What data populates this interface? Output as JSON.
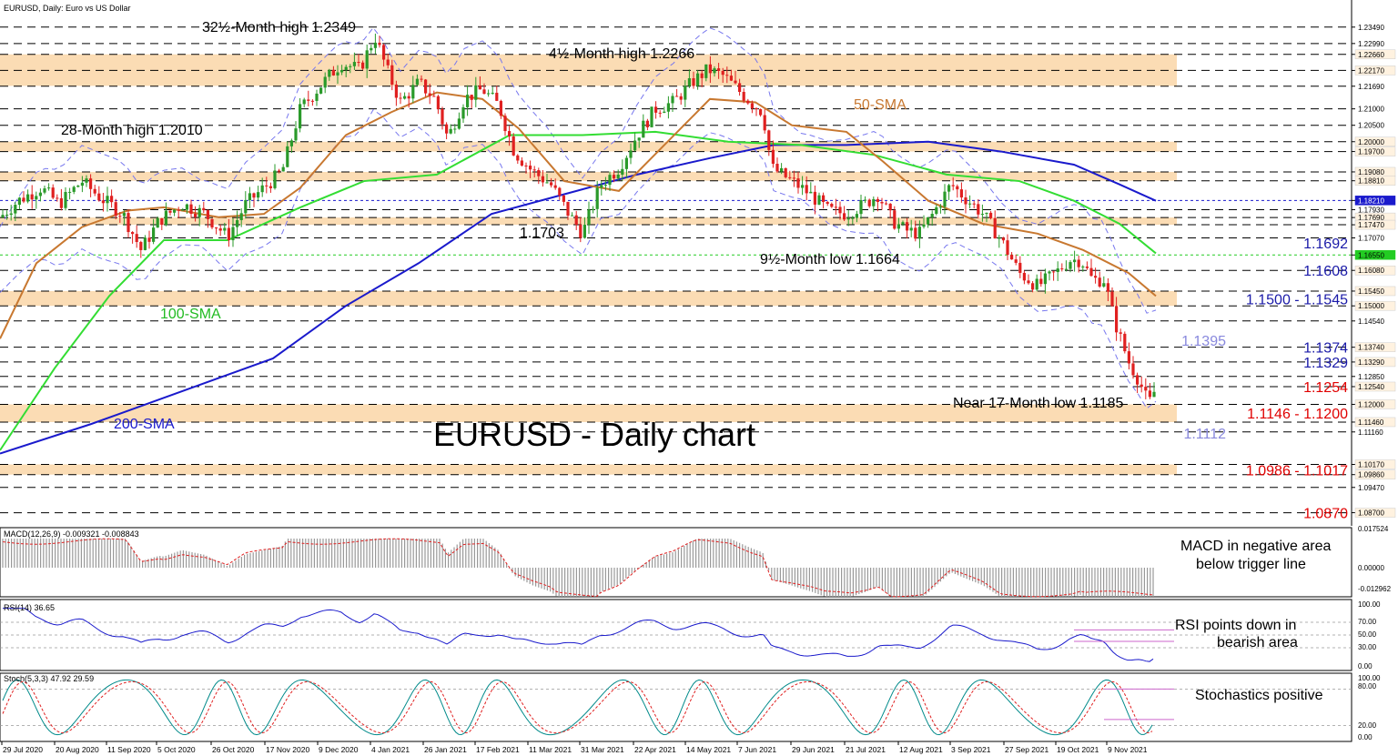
{
  "chart_data": {
    "type": "candlestick",
    "title": "EURUSD - Daily chart",
    "header": "EURUSD, Daily:  Euro vs US Dollar",
    "ylim": [
      1.083,
      1.239
    ],
    "price_ticks": [
      "1.23490",
      "1.22990",
      "1.22660",
      "1.22170",
      "1.21690",
      "1.21000",
      "1.20500",
      "1.20000",
      "1.19700",
      "1.19080",
      "1.18810",
      "1.18210",
      "1.17930",
      "1.17690",
      "1.17470",
      "1.17070",
      "1.16550",
      "1.16080",
      "1.15450",
      "1.15000",
      "1.14540",
      "1.13740",
      "1.13290",
      "1.12850",
      "1.12540",
      "1.12000",
      "1.11460",
      "1.11160",
      "1.10170",
      "1.09860",
      "1.09470",
      "1.08700"
    ],
    "x_labels": [
      "29 Jul 2020",
      "20 Aug 2020",
      "11 Sep 2020",
      "5 Oct 2020",
      "26 Oct 2020",
      "17 Nov 2020",
      "9 Dec 2020",
      "4 Jan 2021",
      "26 Jan 2021",
      "17 Feb 2021",
      "11 Mar 2021",
      "31 Mar 2021",
      "22 Apr 2021",
      "14 May 2021",
      "7 Jun 2021",
      "29 Jun 2021",
      "21 Jul 2021",
      "12 Aug 2021",
      "3 Sep 2021",
      "27 Sep 2021",
      "19 Oct 2021",
      "9 Nov 2021"
    ],
    "price_path": [
      [
        0,
        1.177
      ],
      [
        20,
        1.182
      ],
      [
        45,
        1.186
      ],
      [
        65,
        1.181
      ],
      [
        90,
        1.188
      ],
      [
        110,
        1.183
      ],
      [
        135,
        1.178
      ],
      [
        155,
        1.167
      ],
      [
        175,
        1.176
      ],
      [
        200,
        1.181
      ],
      [
        225,
        1.178
      ],
      [
        250,
        1.171
      ],
      [
        270,
        1.181
      ],
      [
        290,
        1.186
      ],
      [
        310,
        1.191
      ],
      [
        330,
        1.21
      ],
      [
        355,
        1.218
      ],
      [
        375,
        1.224
      ],
      [
        395,
        1.222
      ],
      [
        412,
        1.232
      ],
      [
        425,
        1.222
      ],
      [
        440,
        1.212
      ],
      [
        460,
        1.218
      ],
      [
        478,
        1.213
      ],
      [
        492,
        1.201
      ],
      [
        510,
        1.213
      ],
      [
        530,
        1.216
      ],
      [
        548,
        1.211
      ],
      [
        565,
        1.197
      ],
      [
        585,
        1.191
      ],
      [
        605,
        1.187
      ],
      [
        625,
        1.178
      ],
      [
        640,
        1.172
      ],
      [
        660,
        1.187
      ],
      [
        680,
        1.192
      ],
      [
        700,
        1.202
      ],
      [
        720,
        1.21
      ],
      [
        740,
        1.212
      ],
      [
        760,
        1.218
      ],
      [
        778,
        1.222
      ],
      [
        795,
        1.22
      ],
      [
        810,
        1.216
      ],
      [
        825,
        1.212
      ],
      [
        838,
        1.209
      ],
      [
        848,
        1.192
      ],
      [
        870,
        1.188
      ],
      [
        890,
        1.184
      ],
      [
        910,
        1.179
      ],
      [
        930,
        1.178
      ],
      [
        950,
        1.181
      ],
      [
        965,
        1.184
      ],
      [
        980,
        1.176
      ],
      [
        995,
        1.173
      ],
      [
        1010,
        1.172
      ],
      [
        1025,
        1.178
      ],
      [
        1045,
        1.187
      ],
      [
        1060,
        1.183
      ],
      [
        1080,
        1.178
      ],
      [
        1100,
        1.17
      ],
      [
        1120,
        1.16
      ],
      [
        1140,
        1.156
      ],
      [
        1160,
        1.16
      ],
      [
        1175,
        1.164
      ],
      [
        1188,
        1.164
      ],
      [
        1200,
        1.158
      ],
      [
        1213,
        1.158
      ],
      [
        1225,
        1.145
      ],
      [
        1240,
        1.133
      ],
      [
        1252,
        1.127
      ],
      [
        1262,
        1.12
      ],
      [
        1270,
        1.125
      ]
    ],
    "sma50_path": [
      [
        0,
        1.14
      ],
      [
        40,
        1.163
      ],
      [
        90,
        1.174
      ],
      [
        140,
        1.179
      ],
      [
        180,
        1.18
      ],
      [
        240,
        1.177
      ],
      [
        290,
        1.178
      ],
      [
        330,
        1.186
      ],
      [
        380,
        1.202
      ],
      [
        430,
        1.209
      ],
      [
        480,
        1.215
      ],
      [
        530,
        1.213
      ],
      [
        570,
        1.204
      ],
      [
        620,
        1.188
      ],
      [
        680,
        1.185
      ],
      [
        730,
        1.199
      ],
      [
        780,
        1.213
      ],
      [
        830,
        1.212
      ],
      [
        870,
        1.205
      ],
      [
        930,
        1.203
      ],
      [
        970,
        1.194
      ],
      [
        1020,
        1.182
      ],
      [
        1080,
        1.175
      ],
      [
        1140,
        1.172
      ],
      [
        1190,
        1.167
      ],
      [
        1240,
        1.16
      ],
      [
        1270,
        1.153
      ]
    ],
    "sma100_path": [
      [
        0,
        1.106
      ],
      [
        60,
        1.131
      ],
      [
        120,
        1.153
      ],
      [
        180,
        1.17
      ],
      [
        250,
        1.17
      ],
      [
        330,
        1.18
      ],
      [
        400,
        1.188
      ],
      [
        480,
        1.19
      ],
      [
        560,
        1.202
      ],
      [
        640,
        1.202
      ],
      [
        720,
        1.203
      ],
      [
        800,
        1.2
      ],
      [
        880,
        1.199
      ],
      [
        960,
        1.196
      ],
      [
        1040,
        1.19
      ],
      [
        1120,
        1.188
      ],
      [
        1180,
        1.182
      ],
      [
        1230,
        1.175
      ],
      [
        1270,
        1.166
      ]
    ],
    "sma200_path": [
      [
        0,
        1.105
      ],
      [
        100,
        1.114
      ],
      [
        200,
        1.124
      ],
      [
        300,
        1.134
      ],
      [
        380,
        1.15
      ],
      [
        460,
        1.163
      ],
      [
        540,
        1.178
      ],
      [
        620,
        1.184
      ],
      [
        700,
        1.19
      ],
      [
        780,
        1.195
      ],
      [
        850,
        1.199
      ],
      [
        930,
        1.199
      ],
      [
        1020,
        1.2
      ],
      [
        1100,
        1.197
      ],
      [
        1180,
        1.193
      ],
      [
        1230,
        1.187
      ],
      [
        1270,
        1.182
      ]
    ],
    "zones": [
      {
        "low": 1.217,
        "high": 1.2266
      },
      {
        "low": 1.197,
        "high": 1.2
      },
      {
        "low": 1.1881,
        "high": 1.1908
      },
      {
        "low": 1.1747,
        "high": 1.1769
      },
      {
        "low": 1.15,
        "high": 1.1545
      },
      {
        "low": 1.1146,
        "high": 1.12
      },
      {
        "low": 1.0986,
        "high": 1.1017
      }
    ],
    "annotations": {
      "high_32m": "32½-Month high 1.2349",
      "high_4m": "4½-Month high 1.2266",
      "high_28m": "28-Month high 1.2010",
      "low_1703": "1.1703",
      "low_9m": "9½-Month low 1.1664",
      "low_17m": "Near 17-Month low 1.1185",
      "sma50": "50-SMA",
      "sma100": "100-SMA",
      "sma200": "200-SMA"
    },
    "levels": [
      {
        "text": "1.1692",
        "price": 1.1692,
        "color": "#1a1aa8"
      },
      {
        "text": "1.1608",
        "price": 1.1608,
        "color": "#1a1aa8"
      },
      {
        "text": "1.1500 - 1.1545",
        "price": 1.1522,
        "color": "#1a1aa8"
      },
      {
        "text": "1.1395",
        "price": 1.1395,
        "color": "#8888dd"
      },
      {
        "text": "1.1374",
        "price": 1.1374,
        "color": "#1a1aa8"
      },
      {
        "text": "1.1329",
        "price": 1.1329,
        "color": "#1a1aa8"
      },
      {
        "text": "1.1254",
        "price": 1.1254,
        "color": "#e00000"
      },
      {
        "text": "1.1146 - 1.1200",
        "price": 1.1173,
        "color": "#e00000"
      },
      {
        "text": "1.1112",
        "price": 1.1112,
        "color": "#8888dd"
      },
      {
        "text": "1.0986 - 1.1017",
        "price": 1.1001,
        "color": "#e00000"
      },
      {
        "text": "1.0870",
        "price": 1.087,
        "color": "#e00000"
      }
    ],
    "indicators": {
      "macd_header": "MACD(12,26,9) -0.009321 -0.008843",
      "macd_ticks": [
        "0.017524",
        "0.00000",
        "-0.012962"
      ],
      "macd_note": [
        "MACD in negative area",
        "below trigger line"
      ],
      "rsi_header": "RSI(14) 36.65",
      "rsi_ticks": [
        "100.00",
        "70.00",
        "50.00",
        "30.00",
        "0.00"
      ],
      "rsi_note": [
        "RSI points down in",
        "bearish area"
      ],
      "stoch_header": "Stoch(5,3,3) 47.92 29.59",
      "stoch_ticks": [
        "100.00",
        "80.00",
        "20.00",
        "0.00"
      ],
      "stoch_note": [
        "Stochastics positive"
      ]
    },
    "colors": {
      "sma50": "#c87830",
      "sma100": "#33dd33",
      "sma200": "#1a1acc",
      "zone": "#fbdcb4",
      "bull": "#2a9a2a",
      "bear": "#e02020"
    }
  }
}
